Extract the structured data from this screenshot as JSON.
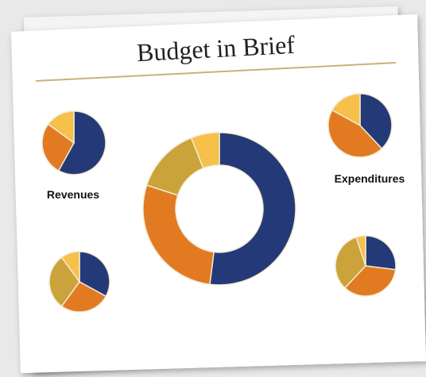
{
  "title": "Budget in Brief",
  "chart_data": [
    {
      "type": "pie",
      "label": "Revenues",
      "values": [
        58,
        27,
        15
      ],
      "colors": [
        "#243a78",
        "#e27a22",
        "#f6c04a"
      ]
    },
    {
      "type": "pie",
      "label": "Expenditures",
      "values": [
        38,
        45,
        17
      ],
      "colors": [
        "#243a78",
        "#e27a22",
        "#f6c04a"
      ]
    },
    {
      "type": "donut",
      "values": [
        52,
        28,
        14,
        6
      ],
      "colors": [
        "#243a78",
        "#e27a22",
        "#caa43a",
        "#f6c04a"
      ]
    },
    {
      "type": "pie",
      "values": [
        33,
        27,
        30,
        10
      ],
      "colors": [
        "#243a78",
        "#e27a22",
        "#caa43a",
        "#f6c04a"
      ]
    },
    {
      "type": "pie",
      "values": [
        27,
        35,
        33,
        5
      ],
      "colors": [
        "#243a78",
        "#e27a22",
        "#caa43a",
        "#f6c04a"
      ]
    }
  ]
}
